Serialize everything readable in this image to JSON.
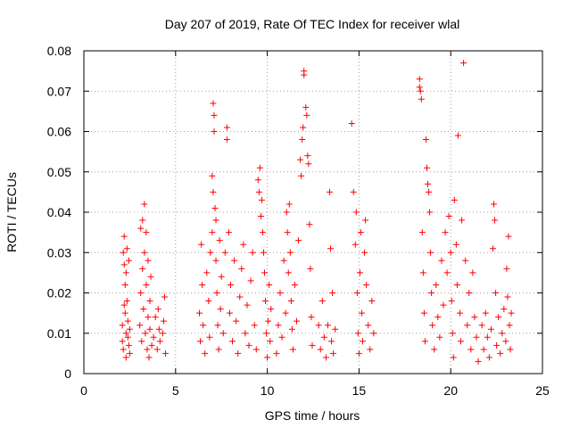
{
  "chart_data": {
    "type": "scatter",
    "title": "Day 207 of 2019, Rate Of TEC Index for receiver wlal",
    "xlabel": "GPS time / hours",
    "ylabel": "ROTI / TECUs",
    "xlim": [
      0,
      25
    ],
    "ylim": [
      0,
      0.08
    ],
    "xticks": [
      0,
      5,
      10,
      15,
      20,
      25
    ],
    "yticks": [
      0,
      0.01,
      0.02,
      0.03,
      0.04,
      0.05,
      0.06,
      0.07,
      0.08
    ],
    "xtick_labels": [
      "0",
      "5",
      "10",
      "15",
      "20",
      "25"
    ],
    "ytick_labels": [
      "0",
      "0.01",
      "0.02",
      "0.03",
      "0.04",
      "0.05",
      "0.06",
      "0.07",
      "0.08"
    ],
    "grid": true,
    "marker": "+",
    "marker_color": "#ff0000",
    "series": [
      {
        "name": "ROTI",
        "points": [
          [
            2.1,
            0.008
          ],
          [
            2.1,
            0.012
          ],
          [
            2.15,
            0.006
          ],
          [
            2.2,
            0.034
          ],
          [
            2.2,
            0.027
          ],
          [
            2.25,
            0.022
          ],
          [
            2.25,
            0.015
          ],
          [
            2.3,
            0.01
          ],
          [
            2.3,
            0.004
          ],
          [
            2.35,
            0.031
          ],
          [
            2.35,
            0.018
          ],
          [
            2.4,
            0.009
          ],
          [
            2.4,
            0.013
          ],
          [
            2.45,
            0.007
          ],
          [
            2.45,
            0.028
          ],
          [
            2.5,
            0.005
          ],
          [
            2.5,
            0.011
          ],
          [
            2.15,
            0.03
          ],
          [
            2.3,
            0.025
          ],
          [
            2.2,
            0.017
          ],
          [
            3.05,
            0.012
          ],
          [
            3.1,
            0.036
          ],
          [
            3.1,
            0.02
          ],
          [
            3.15,
            0.008
          ],
          [
            3.2,
            0.038
          ],
          [
            3.2,
            0.026
          ],
          [
            3.25,
            0.016
          ],
          [
            3.3,
            0.042
          ],
          [
            3.3,
            0.03
          ],
          [
            3.35,
            0.01
          ],
          [
            3.4,
            0.022
          ],
          [
            3.4,
            0.035
          ],
          [
            3.45,
            0.006
          ],
          [
            3.5,
            0.014
          ],
          [
            3.5,
            0.028
          ],
          [
            3.55,
            0.004
          ],
          [
            3.6,
            0.018
          ],
          [
            3.6,
            0.011
          ],
          [
            3.65,
            0.024
          ],
          [
            3.7,
            0.007
          ],
          [
            3.8,
            0.009
          ],
          [
            3.9,
            0.014
          ],
          [
            4.0,
            0.006
          ],
          [
            4.05,
            0.016
          ],
          [
            4.1,
            0.011
          ],
          [
            4.15,
            0.008
          ],
          [
            4.3,
            0.01
          ],
          [
            4.4,
            0.019
          ],
          [
            4.45,
            0.005
          ],
          [
            4.35,
            0.013
          ],
          [
            6.3,
            0.015
          ],
          [
            6.35,
            0.008
          ],
          [
            6.4,
            0.032
          ],
          [
            6.45,
            0.022
          ],
          [
            6.5,
            0.012
          ],
          [
            6.6,
            0.005
          ],
          [
            6.7,
            0.025
          ],
          [
            6.8,
            0.018
          ],
          [
            6.85,
            0.009
          ],
          [
            6.9,
            0.03
          ],
          [
            7.0,
            0.049
          ],
          [
            7.0,
            0.035
          ],
          [
            7.05,
            0.045
          ],
          [
            7.05,
            0.067
          ],
          [
            7.1,
            0.064
          ],
          [
            7.1,
            0.06
          ],
          [
            7.15,
            0.041
          ],
          [
            7.2,
            0.038
          ],
          [
            7.2,
            0.028
          ],
          [
            7.25,
            0.02
          ],
          [
            7.3,
            0.012
          ],
          [
            7.35,
            0.006
          ],
          [
            7.4,
            0.033
          ],
          [
            7.45,
            0.016
          ],
          [
            7.5,
            0.024
          ],
          [
            7.6,
            0.01
          ],
          [
            7.7,
            0.03
          ],
          [
            7.8,
            0.061
          ],
          [
            7.8,
            0.058
          ],
          [
            7.9,
            0.035
          ],
          [
            7.95,
            0.015
          ],
          [
            8.0,
            0.022
          ],
          [
            8.1,
            0.008
          ],
          [
            8.2,
            0.028
          ],
          [
            8.3,
            0.013
          ],
          [
            8.4,
            0.005
          ],
          [
            8.5,
            0.019
          ],
          [
            8.6,
            0.026
          ],
          [
            8.7,
            0.032
          ],
          [
            8.8,
            0.01
          ],
          [
            8.9,
            0.017
          ],
          [
            9.0,
            0.007
          ],
          [
            9.1,
            0.023
          ],
          [
            9.2,
            0.03
          ],
          [
            9.3,
            0.012
          ],
          [
            9.4,
            0.006
          ],
          [
            9.5,
            0.048
          ],
          [
            9.55,
            0.045
          ],
          [
            9.6,
            0.051
          ],
          [
            9.65,
            0.039
          ],
          [
            9.7,
            0.043
          ],
          [
            9.75,
            0.035
          ],
          [
            9.8,
            0.03
          ],
          [
            9.85,
            0.025
          ],
          [
            9.9,
            0.018
          ],
          [
            9.95,
            0.01
          ],
          [
            10.0,
            0.004
          ],
          [
            10.05,
            0.013
          ],
          [
            10.1,
            0.022
          ],
          [
            10.15,
            0.008
          ],
          [
            10.2,
            0.016
          ],
          [
            10.5,
            0.005
          ],
          [
            10.6,
            0.012
          ],
          [
            10.7,
            0.02
          ],
          [
            10.8,
            0.009
          ],
          [
            10.9,
            0.028
          ],
          [
            11.0,
            0.015
          ],
          [
            11.05,
            0.04
          ],
          [
            11.1,
            0.035
          ],
          [
            11.15,
            0.025
          ],
          [
            11.2,
            0.042
          ],
          [
            11.25,
            0.03
          ],
          [
            11.3,
            0.018
          ],
          [
            11.35,
            0.011
          ],
          [
            11.4,
            0.006
          ],
          [
            11.5,
            0.022
          ],
          [
            11.6,
            0.013
          ],
          [
            11.7,
            0.033
          ],
          [
            11.8,
            0.053
          ],
          [
            11.85,
            0.049
          ],
          [
            11.9,
            0.058
          ],
          [
            11.95,
            0.061
          ],
          [
            12.0,
            0.075
          ],
          [
            12.0,
            0.074
          ],
          [
            12.1,
            0.066
          ],
          [
            12.15,
            0.064
          ],
          [
            12.2,
            0.054
          ],
          [
            12.25,
            0.052
          ],
          [
            12.3,
            0.037
          ],
          [
            12.35,
            0.026
          ],
          [
            12.4,
            0.014
          ],
          [
            12.45,
            0.007
          ],
          [
            12.8,
            0.012
          ],
          [
            12.9,
            0.006
          ],
          [
            13.0,
            0.018
          ],
          [
            13.1,
            0.009
          ],
          [
            13.2,
            0.004
          ],
          [
            13.3,
            0.012
          ],
          [
            13.4,
            0.045
          ],
          [
            13.45,
            0.031
          ],
          [
            13.5,
            0.008
          ],
          [
            13.55,
            0.02
          ],
          [
            13.6,
            0.005
          ],
          [
            13.7,
            0.011
          ],
          [
            14.6,
            0.062
          ],
          [
            14.7,
            0.045
          ],
          [
            14.8,
            0.032
          ],
          [
            14.85,
            0.04
          ],
          [
            14.9,
            0.02
          ],
          [
            14.95,
            0.01
          ],
          [
            15.0,
            0.005
          ],
          [
            15.05,
            0.025
          ],
          [
            15.1,
            0.035
          ],
          [
            15.15,
            0.015
          ],
          [
            15.2,
            0.008
          ],
          [
            15.3,
            0.03
          ],
          [
            15.35,
            0.038
          ],
          [
            15.4,
            0.022
          ],
          [
            15.5,
            0.012
          ],
          [
            15.6,
            0.006
          ],
          [
            15.7,
            0.018
          ],
          [
            15.8,
            0.01
          ],
          [
            18.3,
            0.073
          ],
          [
            18.3,
            0.071
          ],
          [
            18.35,
            0.07
          ],
          [
            18.4,
            0.068
          ],
          [
            18.45,
            0.035
          ],
          [
            18.5,
            0.025
          ],
          [
            18.55,
            0.015
          ],
          [
            18.6,
            0.008
          ],
          [
            18.65,
            0.058
          ],
          [
            18.7,
            0.051
          ],
          [
            18.75,
            0.047
          ],
          [
            18.8,
            0.045
          ],
          [
            18.85,
            0.04
          ],
          [
            18.9,
            0.03
          ],
          [
            18.95,
            0.02
          ],
          [
            19.0,
            0.012
          ],
          [
            19.1,
            0.006
          ],
          [
            19.2,
            0.022
          ],
          [
            19.3,
            0.014
          ],
          [
            19.4,
            0.009
          ],
          [
            19.5,
            0.028
          ],
          [
            19.6,
            0.017
          ],
          [
            19.7,
            0.035
          ],
          [
            19.8,
            0.025
          ],
          [
            19.9,
            0.039
          ],
          [
            20.0,
            0.03
          ],
          [
            20.05,
            0.018
          ],
          [
            20.1,
            0.01
          ],
          [
            20.15,
            0.004
          ],
          [
            20.2,
            0.043
          ],
          [
            20.3,
            0.032
          ],
          [
            20.35,
            0.022
          ],
          [
            20.4,
            0.059
          ],
          [
            20.5,
            0.015
          ],
          [
            20.55,
            0.008
          ],
          [
            20.6,
            0.038
          ],
          [
            20.7,
            0.077
          ],
          [
            20.8,
            0.028
          ],
          [
            20.9,
            0.012
          ],
          [
            21.0,
            0.02
          ],
          [
            21.1,
            0.006
          ],
          [
            21.2,
            0.025
          ],
          [
            21.3,
            0.014
          ],
          [
            21.4,
            0.009
          ],
          [
            21.5,
            0.003
          ],
          [
            21.7,
            0.012
          ],
          [
            21.8,
            0.006
          ],
          [
            21.9,
            0.015
          ],
          [
            22.0,
            0.009
          ],
          [
            22.1,
            0.004
          ],
          [
            22.2,
            0.011
          ],
          [
            22.3,
            0.031
          ],
          [
            22.35,
            0.042
          ],
          [
            22.4,
            0.038
          ],
          [
            22.45,
            0.02
          ],
          [
            22.5,
            0.007
          ],
          [
            22.6,
            0.014
          ],
          [
            22.7,
            0.005
          ],
          [
            22.8,
            0.01
          ],
          [
            22.9,
            0.016
          ],
          [
            23.0,
            0.008
          ],
          [
            23.05,
            0.026
          ],
          [
            23.1,
            0.019
          ],
          [
            23.15,
            0.034
          ],
          [
            23.2,
            0.012
          ],
          [
            23.25,
            0.006
          ],
          [
            23.3,
            0.015
          ]
        ]
      }
    ]
  }
}
